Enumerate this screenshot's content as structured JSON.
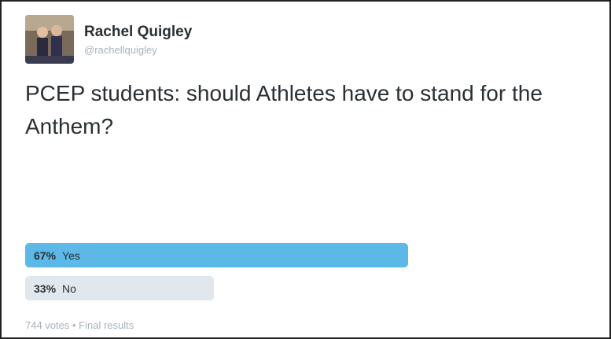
{
  "tweet": {
    "author": {
      "name": "Rachel Quigley",
      "handle": "@rachellquigley"
    },
    "text": "PCEP students: should Athletes have to stand for the Anthem?",
    "poll": {
      "options": [
        {
          "percent": {
            "value": 67,
            "label": "67%"
          },
          "label": "Yes"
        },
        {
          "percent": {
            "value": 33,
            "label": "33%"
          },
          "label": "No"
        }
      ],
      "footer": "744 votes • Final results"
    }
  }
}
